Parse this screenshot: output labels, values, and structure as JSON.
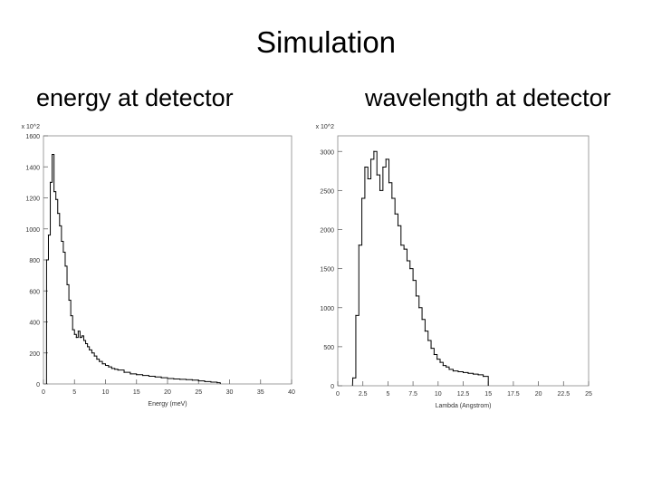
{
  "slide": {
    "title": "Simulation",
    "left_caption": "energy at detector",
    "right_caption": "wavelength at detector"
  },
  "chart_data": [
    {
      "type": "line",
      "title": "",
      "multiplier": "x 10^2",
      "xlabel": "Energy (meV)",
      "ylabel": "",
      "xlim": [
        0,
        40
      ],
      "ylim": [
        0,
        1600
      ],
      "xticks": [
        0,
        5,
        10,
        15,
        20,
        25,
        30,
        35,
        40
      ],
      "yticks": [
        0,
        200,
        400,
        600,
        800,
        1000,
        1200,
        1400,
        1600
      ],
      "tick_labels_x": [
        "0",
        "5",
        "10",
        "15",
        "20",
        "25",
        "30",
        "35",
        "40"
      ],
      "tick_labels_y": [
        "0",
        "200",
        "400",
        "600",
        "800",
        "1000",
        "1200",
        "1400",
        "1600"
      ],
      "grid": false,
      "series": [
        {
          "x": [
            0.5,
            0.8,
            1.1,
            1.4,
            1.7,
            2.0,
            2.3,
            2.6,
            2.9,
            3.2,
            3.5,
            3.8,
            4.1,
            4.4,
            4.7,
            5.0,
            5.3,
            5.6,
            5.9,
            6.2,
            6.5,
            6.8,
            7.1,
            7.4,
            7.8,
            8.2,
            8.6,
            9.0,
            9.5,
            10.0,
            10.5,
            11.0,
            11.5,
            12.0,
            13.0,
            14.0,
            15.0,
            16.0,
            17.0,
            18.0,
            19.0,
            20.0,
            21.0,
            22.0,
            23.0,
            24.0,
            25.0,
            26.0,
            27.0,
            28.0
          ],
          "y": [
            800,
            960,
            1300,
            1480,
            1240,
            1190,
            1100,
            1020,
            920,
            850,
            760,
            640,
            540,
            440,
            350,
            320,
            300,
            340,
            300,
            310,
            280,
            260,
            240,
            220,
            200,
            180,
            160,
            145,
            130,
            120,
            110,
            100,
            95,
            90,
            75,
            65,
            60,
            55,
            50,
            45,
            40,
            35,
            32,
            30,
            28,
            25,
            20,
            15,
            12,
            8
          ]
        }
      ]
    },
    {
      "type": "line",
      "title": "",
      "multiplier": "x 10^2",
      "xlabel": "Lambda (Angstrom)",
      "ylabel": "",
      "xlim": [
        0,
        25
      ],
      "ylim": [
        0,
        3200
      ],
      "xticks": [
        0,
        2.5,
        5,
        7.5,
        10,
        12.5,
        15,
        17.5,
        20,
        22.5,
        25
      ],
      "yticks": [
        0,
        500,
        1000,
        1500,
        2000,
        2500,
        3000
      ],
      "tick_labels_x": [
        "0",
        "2.5",
        "5",
        "7.5",
        "10",
        "12.5",
        "15",
        "17.5",
        "20",
        "22.5",
        "25"
      ],
      "tick_labels_y": [
        "0",
        "500",
        "1000",
        "1500",
        "2000",
        "2500",
        "3000"
      ],
      "grid": false,
      "series": [
        {
          "x": [
            1.5,
            1.8,
            2.1,
            2.4,
            2.7,
            3.0,
            3.3,
            3.6,
            3.9,
            4.2,
            4.5,
            4.8,
            5.1,
            5.4,
            5.7,
            6.0,
            6.3,
            6.6,
            6.9,
            7.2,
            7.5,
            7.8,
            8.1,
            8.4,
            8.7,
            9.0,
            9.3,
            9.6,
            9.9,
            10.2,
            10.5,
            10.8,
            11.1,
            11.5,
            12.0,
            12.5,
            13.0,
            13.5,
            14.0,
            14.5
          ],
          "y": [
            100,
            900,
            1800,
            2400,
            2800,
            2650,
            2900,
            3000,
            2700,
            2500,
            2800,
            2900,
            2600,
            2400,
            2200,
            2050,
            1800,
            1750,
            1600,
            1500,
            1350,
            1150,
            1000,
            850,
            700,
            580,
            480,
            400,
            340,
            300,
            260,
            240,
            210,
            190,
            180,
            170,
            160,
            150,
            140,
            120
          ]
        }
      ]
    }
  ]
}
